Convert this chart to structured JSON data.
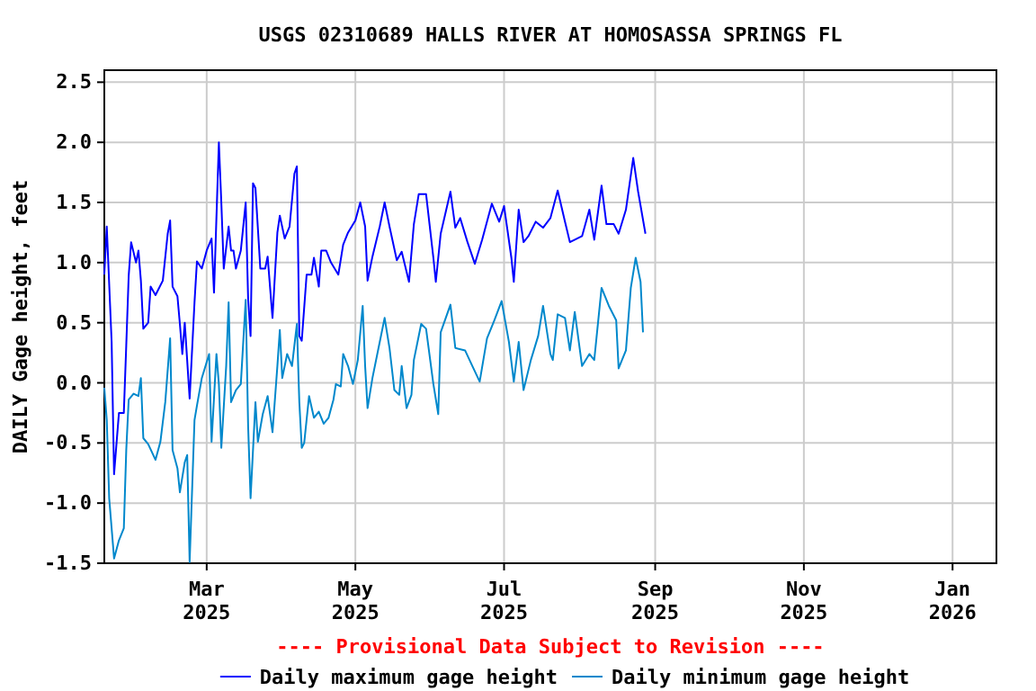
{
  "chart_data": {
    "type": "line",
    "title": "USGS 02310689 HALLS RIVER AT HOMOSASSA SPRINGS FL",
    "ylabel": "DAILY Gage height, feet",
    "annotations": [
      "---- Provisional Data Subject to Revision ----"
    ],
    "xlim": [
      "2025-01-18",
      "2026-01-19"
    ],
    "xticks": [
      {
        "value": "2025-03-01",
        "label": "Mar\n2025"
      },
      {
        "value": "2025-05-01",
        "label": "May\n2025"
      },
      {
        "value": "2025-07-01",
        "label": "Jul\n2025"
      },
      {
        "value": "2025-09-01",
        "label": "Sep\n2025"
      },
      {
        "value": "2025-11-01",
        "label": "Nov\n2025"
      },
      {
        "value": "2026-01-01",
        "label": "Jan\n2026"
      }
    ],
    "ylim": [
      -1.5,
      2.6
    ],
    "yticks": [
      {
        "value": -1.5,
        "label": "-1.5"
      },
      {
        "value": -1,
        "label": "-1.0"
      },
      {
        "value": -0.5,
        "label": "-0.5"
      },
      {
        "value": 0,
        "label": "0.0"
      },
      {
        "value": 0.5,
        "label": "0.5"
      },
      {
        "value": 1,
        "label": "1.0"
      },
      {
        "value": 1.5,
        "label": "1.5"
      },
      {
        "value": 2,
        "label": "2.0"
      },
      {
        "value": 2.5,
        "label": "2.5"
      }
    ],
    "grid": true,
    "legend": "bottom",
    "line_style": "solid",
    "marker": "none",
    "series": [
      {
        "name": "Daily maximum gage height",
        "color": "#0000ff",
        "x": [
          "2025-01-18",
          "2025-01-19",
          "2025-01-21",
          "2025-01-22",
          "2025-01-24",
          "2025-01-26",
          "2025-01-27",
          "2025-01-28",
          "2025-01-29",
          "2025-01-31",
          "2025-02-01",
          "2025-02-02",
          "2025-02-03",
          "2025-02-05",
          "2025-02-06",
          "2025-02-08",
          "2025-02-11",
          "2025-02-13",
          "2025-02-14",
          "2025-02-15",
          "2025-02-17",
          "2025-02-18",
          "2025-02-19",
          "2025-02-20",
          "2025-02-22",
          "2025-02-24",
          "2025-02-25",
          "2025-02-27",
          "2025-03-01",
          "2025-03-03",
          "2025-03-04",
          "2025-03-06",
          "2025-03-07",
          "2025-03-08",
          "2025-03-10",
          "2025-03-11",
          "2025-03-12",
          "2025-03-13",
          "2025-03-15",
          "2025-03-17",
          "2025-03-18",
          "2025-03-19",
          "2025-03-20",
          "2025-03-21",
          "2025-03-23",
          "2025-03-25",
          "2025-03-26",
          "2025-03-28",
          "2025-03-29",
          "2025-03-30",
          "2025-03-31",
          "2025-04-02",
          "2025-04-04",
          "2025-04-06",
          "2025-04-07",
          "2025-04-08",
          "2025-04-09",
          "2025-04-11",
          "2025-04-13",
          "2025-04-14",
          "2025-04-16",
          "2025-04-17",
          "2025-04-19",
          "2025-04-21",
          "2025-04-24",
          "2025-04-26",
          "2025-04-28",
          "2025-05-01",
          "2025-05-03",
          "2025-05-05",
          "2025-05-06",
          "2025-05-08",
          "2025-05-11",
          "2025-05-13",
          "2025-05-15",
          "2025-05-18",
          "2025-05-20",
          "2025-05-23",
          "2025-05-25",
          "2025-05-27",
          "2025-05-30",
          "2025-06-02",
          "2025-06-03",
          "2025-06-05",
          "2025-06-09",
          "2025-06-11",
          "2025-06-13",
          "2025-06-16",
          "2025-06-19",
          "2025-06-22",
          "2025-06-26",
          "2025-06-29",
          "2025-07-01",
          "2025-07-04",
          "2025-07-05",
          "2025-07-07",
          "2025-07-09",
          "2025-07-11",
          "2025-07-14",
          "2025-07-17",
          "2025-07-20",
          "2025-07-23",
          "2025-07-26",
          "2025-07-28",
          "2025-08-02",
          "2025-08-05",
          "2025-08-07",
          "2025-08-10",
          "2025-08-12",
          "2025-08-15",
          "2025-08-17",
          "2025-08-20",
          "2025-08-23",
          "2025-08-25",
          "2025-08-28"
        ],
        "values": [
          0.9,
          1.3,
          0.34,
          -0.76,
          -0.25,
          -0.25,
          0.31,
          0.89,
          1.17,
          1.0,
          1.1,
          0.85,
          0.45,
          0.5,
          0.8,
          0.73,
          0.85,
          1.24,
          1.35,
          0.8,
          0.72,
          0.49,
          0.24,
          0.5,
          -0.13,
          0.67,
          1.01,
          0.95,
          1.1,
          1.2,
          0.75,
          2.0,
          1.5,
          0.95,
          1.3,
          1.1,
          1.1,
          0.95,
          1.1,
          1.5,
          0.7,
          0.39,
          1.66,
          1.62,
          0.95,
          0.95,
          1.05,
          0.54,
          0.9,
          1.25,
          1.39,
          1.2,
          1.3,
          1.74,
          1.8,
          0.39,
          0.35,
          0.9,
          0.9,
          1.04,
          0.8,
          1.1,
          1.1,
          1.0,
          0.9,
          1.15,
          1.25,
          1.35,
          1.5,
          1.3,
          0.85,
          1.05,
          1.3,
          1.5,
          1.3,
          1.02,
          1.09,
          0.84,
          1.32,
          1.57,
          1.57,
          1.04,
          0.84,
          1.24,
          1.59,
          1.29,
          1.37,
          1.17,
          0.99,
          1.19,
          1.49,
          1.34,
          1.47,
          1.04,
          0.84,
          1.44,
          1.17,
          1.22,
          1.34,
          1.29,
          1.37,
          1.6,
          1.34,
          1.17,
          1.22,
          1.44,
          1.19,
          1.64,
          1.32,
          1.32,
          1.24,
          1.44,
          1.87,
          1.59,
          1.24
        ]
      },
      {
        "name": "Daily minimum gage height",
        "color": "#0088cc",
        "x": [
          "2025-01-18",
          "2025-01-19",
          "2025-01-20",
          "2025-01-22",
          "2025-01-24",
          "2025-01-26",
          "2025-01-27",
          "2025-01-28",
          "2025-01-30",
          "2025-02-01",
          "2025-02-02",
          "2025-02-03",
          "2025-02-05",
          "2025-02-08",
          "2025-02-10",
          "2025-02-12",
          "2025-02-14",
          "2025-02-15",
          "2025-02-17",
          "2025-02-18",
          "2025-02-20",
          "2025-02-21",
          "2025-02-22",
          "2025-02-24",
          "2025-02-25",
          "2025-02-27",
          "2025-03-02",
          "2025-03-03",
          "2025-03-05",
          "2025-03-06",
          "2025-03-07",
          "2025-03-09",
          "2025-03-10",
          "2025-03-11",
          "2025-03-13",
          "2025-03-15",
          "2025-03-17",
          "2025-03-18",
          "2025-03-19",
          "2025-03-21",
          "2025-03-22",
          "2025-03-24",
          "2025-03-26",
          "2025-03-28",
          "2025-03-30",
          "2025-03-31",
          "2025-04-01",
          "2025-04-03",
          "2025-04-05",
          "2025-04-07",
          "2025-04-08",
          "2025-04-09",
          "2025-04-10",
          "2025-04-12",
          "2025-04-14",
          "2025-04-16",
          "2025-04-18",
          "2025-04-20",
          "2025-04-22",
          "2025-04-23",
          "2025-04-25",
          "2025-04-26",
          "2025-04-28",
          "2025-04-30",
          "2025-05-02",
          "2025-05-04",
          "2025-05-05",
          "2025-05-06",
          "2025-05-08",
          "2025-05-11",
          "2025-05-13",
          "2025-05-15",
          "2025-05-17",
          "2025-05-19",
          "2025-05-20",
          "2025-05-22",
          "2025-05-24",
          "2025-05-25",
          "2025-05-28",
          "2025-05-30",
          "2025-06-02",
          "2025-06-04",
          "2025-06-05",
          "2025-06-09",
          "2025-06-11",
          "2025-06-15",
          "2025-06-18",
          "2025-06-21",
          "2025-06-24",
          "2025-06-27",
          "2025-06-30",
          "2025-07-03",
          "2025-07-05",
          "2025-07-07",
          "2025-07-09",
          "2025-07-12",
          "2025-07-15",
          "2025-07-17",
          "2025-07-20",
          "2025-07-21",
          "2025-07-23",
          "2025-07-26",
          "2025-07-28",
          "2025-07-30",
          "2025-08-02",
          "2025-08-05",
          "2025-08-07",
          "2025-08-10",
          "2025-08-13",
          "2025-08-16",
          "2025-08-17",
          "2025-08-20",
          "2025-08-22",
          "2025-08-24",
          "2025-08-26",
          "2025-08-27"
        ],
        "values": [
          -0.04,
          -0.31,
          -0.96,
          -1.46,
          -1.31,
          -1.21,
          -0.56,
          -0.14,
          -0.09,
          -0.11,
          0.04,
          -0.46,
          -0.51,
          -0.64,
          -0.49,
          -0.16,
          0.37,
          -0.56,
          -0.71,
          -0.91,
          -0.66,
          -0.6,
          -1.49,
          -0.31,
          -0.19,
          0.04,
          0.24,
          -0.49,
          0.24,
          -0.01,
          -0.54,
          0.14,
          0.67,
          -0.16,
          -0.06,
          -0.01,
          0.69,
          -0.36,
          -0.96,
          -0.16,
          -0.49,
          -0.26,
          -0.11,
          -0.41,
          0.14,
          0.44,
          0.04,
          0.24,
          0.14,
          0.49,
          -0.16,
          -0.54,
          -0.5,
          -0.11,
          -0.29,
          -0.24,
          -0.34,
          -0.29,
          -0.14,
          -0.01,
          -0.03,
          0.24,
          0.14,
          -0.01,
          0.19,
          0.64,
          0.14,
          -0.21,
          0.04,
          0.34,
          0.54,
          0.29,
          -0.06,
          -0.1,
          0.14,
          -0.21,
          -0.1,
          0.19,
          0.49,
          0.45,
          -0.01,
          -0.26,
          0.42,
          0.65,
          0.29,
          0.27,
          0.14,
          0.01,
          0.37,
          0.52,
          0.68,
          0.34,
          0.01,
          0.34,
          -0.06,
          0.19,
          0.39,
          0.64,
          0.24,
          0.19,
          0.57,
          0.54,
          0.27,
          0.59,
          0.14,
          0.24,
          0.19,
          0.79,
          0.64,
          0.52,
          0.12,
          0.27,
          0.79,
          1.04,
          0.84,
          0.42
        ]
      }
    ]
  }
}
